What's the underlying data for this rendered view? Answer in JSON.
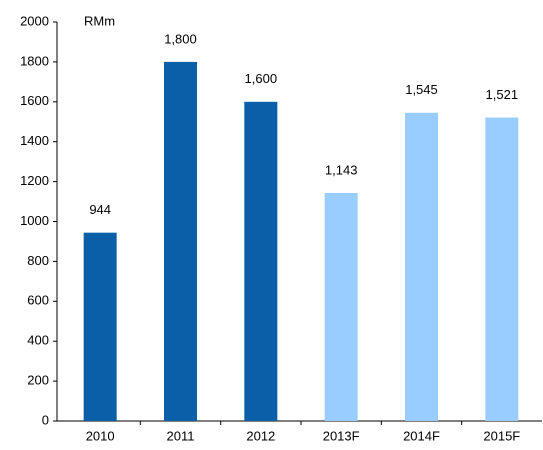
{
  "chart_data": {
    "type": "bar",
    "ylabel": "RMm",
    "categories": [
      "2010",
      "2011",
      "2012",
      "2013F",
      "2014F",
      "2015F"
    ],
    "values": [
      944,
      1800,
      1600,
      1143,
      1545,
      1521
    ],
    "value_labels": [
      "944",
      "1,800",
      "1,600",
      "1,143",
      "1,545",
      "1,521"
    ],
    "colors": [
      "#0a5fa8",
      "#0a5fa8",
      "#0a5fa8",
      "#99ccff",
      "#99ccff",
      "#99ccff"
    ],
    "ylim": [
      0,
      2000
    ],
    "yticks": [
      0,
      200,
      400,
      600,
      800,
      1000,
      1200,
      1400,
      1600,
      1800,
      2000
    ],
    "grid": false
  }
}
